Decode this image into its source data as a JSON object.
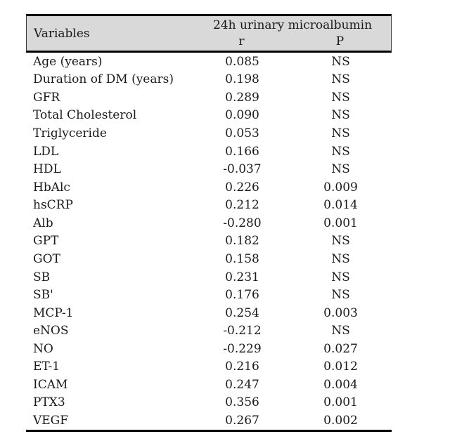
{
  "chart_data": {
    "type": "table",
    "header": {
      "col1": "Variables",
      "group": "24h urinary microalbumin",
      "sub_r": "r",
      "sub_p": "P"
    },
    "rows": [
      {
        "variable": "Age (years)",
        "r": "0.085",
        "p": "NS"
      },
      {
        "variable": "Duration of DM (years)",
        "r": "0.198",
        "p": "NS"
      },
      {
        "variable": "GFR",
        "r": "0.289",
        "p": "NS"
      },
      {
        "variable": "Total Cholesterol",
        "r": "0.090",
        "p": "NS"
      },
      {
        "variable": "Triglyceride",
        "r": "0.053",
        "p": "NS"
      },
      {
        "variable": "LDL",
        "r": "0.166",
        "p": "NS"
      },
      {
        "variable": "HDL",
        "r": "-0.037",
        "p": "NS"
      },
      {
        "variable": "HbAlc",
        "r": "0.226",
        "p": "0.009"
      },
      {
        "variable": "hsCRP",
        "r": "0.212",
        "p": "0.014"
      },
      {
        "variable": "Alb",
        "r": "-0.280",
        "p": "0.001"
      },
      {
        "variable": "GPT",
        "r": "0.182",
        "p": "NS"
      },
      {
        "variable": "GOT",
        "r": "0.158",
        "p": "NS"
      },
      {
        "variable": "SB",
        "r": "0.231",
        "p": "NS"
      },
      {
        "variable": "SB'",
        "r": "0.176",
        "p": "NS"
      },
      {
        "variable": "MCP-1",
        "r": "0.254",
        "p": "0.003"
      },
      {
        "variable": "eNOS",
        "r": "-0.212",
        "p": "NS"
      },
      {
        "variable": "NO",
        "r": "-0.229",
        "p": "0.027"
      },
      {
        "variable": "ET-1",
        "r": "0.216",
        "p": "0.012"
      },
      {
        "variable": "ICAM",
        "r": "0.247",
        "p": "0.004"
      },
      {
        "variable": "PTX3",
        "r": "0.356",
        "p": "0.001"
      },
      {
        "variable": "VEGF",
        "r": "0.267",
        "p": "0.002"
      }
    ],
    "layout": {
      "header_bg": "#d9d9d9",
      "border_color": "#000000",
      "text_color": "#1a1a1a"
    }
  }
}
